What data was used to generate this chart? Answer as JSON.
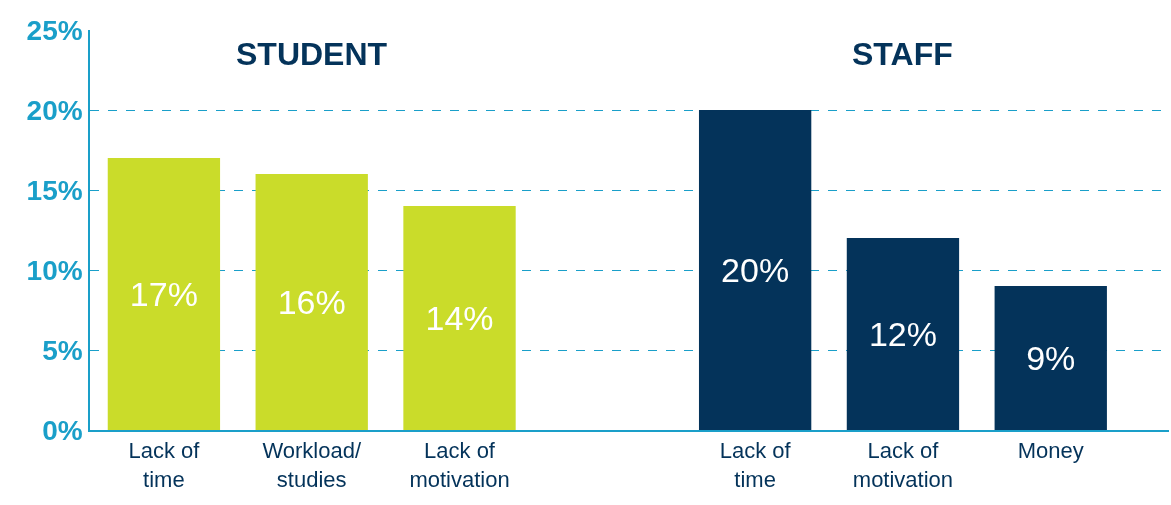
{
  "chart_data": {
    "type": "bar",
    "categories": [
      "Lack of time",
      "Workload/ studies",
      "Lack of motivation",
      null,
      "Lack of time",
      "Lack of motivation",
      "Money"
    ],
    "values": [
      17,
      16,
      14,
      null,
      20,
      12,
      9
    ],
    "colors": [
      "#cadc2a",
      "#cadc2a",
      "#cadc2a",
      null,
      "#04335a",
      "#04335a",
      "#04335a"
    ],
    "value_labels": [
      "17%",
      "16%",
      "14%",
      null,
      "20%",
      "12%",
      "9%"
    ],
    "annotations": [
      "STUDENT",
      "STAFF"
    ],
    "ylim": [
      0,
      25
    ],
    "yticks": [
      {
        "value": 0,
        "label": "0%"
      },
      {
        "value": 5,
        "label": "5%"
      },
      {
        "value": 10,
        "label": "10%"
      },
      {
        "value": 15,
        "label": "15%"
      },
      {
        "value": 20,
        "label": "20%"
      },
      {
        "value": 25,
        "label": "25%"
      }
    ],
    "grid": "y"
  }
}
